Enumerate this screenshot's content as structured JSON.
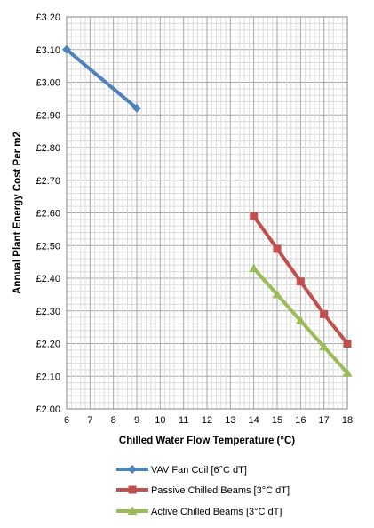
{
  "chart_data": {
    "type": "line",
    "title": "",
    "xlabel": "Chilled Water Flow Temperature (°C)",
    "ylabel": "Annual Plant Energy Cost Per m2",
    "xlim": [
      6,
      18
    ],
    "ylim": [
      2.0,
      3.2
    ],
    "x_ticks": [
      6,
      7,
      8,
      9,
      10,
      11,
      12,
      13,
      14,
      15,
      16,
      17,
      18
    ],
    "y_ticks": [
      "£2.00",
      "£2.10",
      "£2.20",
      "£2.30",
      "£2.40",
      "£2.50",
      "£2.60",
      "£2.70",
      "£2.80",
      "£2.90",
      "£3.00",
      "£3.10",
      "£3.20"
    ],
    "grid": "on",
    "legend_position": "bottom",
    "series": [
      {
        "name": "VAV Fan Coil [6°C dT]",
        "color": "#4f81bd",
        "marker": "diamond",
        "x": [
          6,
          9
        ],
        "values": [
          3.1,
          2.92
        ]
      },
      {
        "name": "Passive Chilled Beams [3°C dT]",
        "color": "#c0504d",
        "marker": "square",
        "x": [
          14,
          15,
          16,
          17,
          18
        ],
        "values": [
          2.59,
          2.49,
          2.39,
          2.29,
          2.2
        ]
      },
      {
        "name": "Active Chilled Beams [3°C dT]",
        "color": "#9bbb59",
        "marker": "triangle",
        "x": [
          14,
          15,
          16,
          17,
          18
        ],
        "values": [
          2.43,
          2.35,
          2.27,
          2.19,
          2.11
        ]
      }
    ]
  }
}
